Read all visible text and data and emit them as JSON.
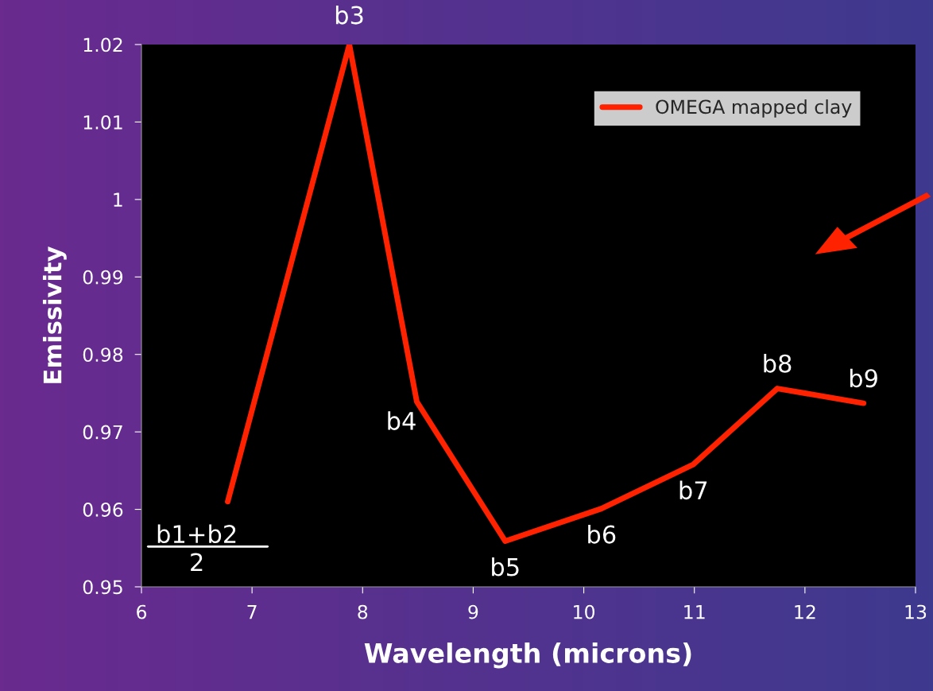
{
  "chart_data": {
    "type": "line",
    "xlabel": "Wavelength (microns)",
    "ylabel": "Emissivity",
    "x": [
      6.78,
      7.88,
      8.49,
      9.29,
      10.16,
      10.99,
      11.75,
      12.53
    ],
    "series": [
      {
        "name": "OMEGA mapped clay",
        "color": "#ff2200",
        "values": [
          0.961,
          1.02,
          0.9739,
          0.9559,
          0.9601,
          0.9658,
          0.9756,
          0.9737
        ]
      }
    ],
    "xlim": [
      6,
      13
    ],
    "xticks": [
      6,
      7,
      8,
      9,
      10,
      11,
      12,
      13
    ],
    "ylim": [
      0.95,
      1.02
    ],
    "yticks": [
      0.95,
      0.96,
      0.97,
      0.98,
      0.99,
      {
        "value": 1.0,
        "label": "1"
      },
      1.01,
      1.02
    ],
    "grid": false,
    "legend": "top right",
    "marker": "none",
    "line_style": "solid",
    "annotations": [
      {
        "text": "b1+b2\n2",
        "x": 6.78,
        "y": 0.961
      },
      {
        "text": "b3",
        "x": 7.88,
        "y": 1.02
      },
      {
        "text": "b4",
        "x": 8.49,
        "y": 0.9739
      },
      {
        "text": "b5",
        "x": 9.29,
        "y": 0.9559
      },
      {
        "text": "b6",
        "x": 10.16,
        "y": 0.9601
      },
      {
        "text": "b7",
        "x": 10.99,
        "y": 0.9658
      },
      {
        "text": "b8",
        "x": 11.75,
        "y": 0.9756
      },
      {
        "text": "b9",
        "x": 12.53,
        "y": 0.9737
      }
    ]
  }
}
